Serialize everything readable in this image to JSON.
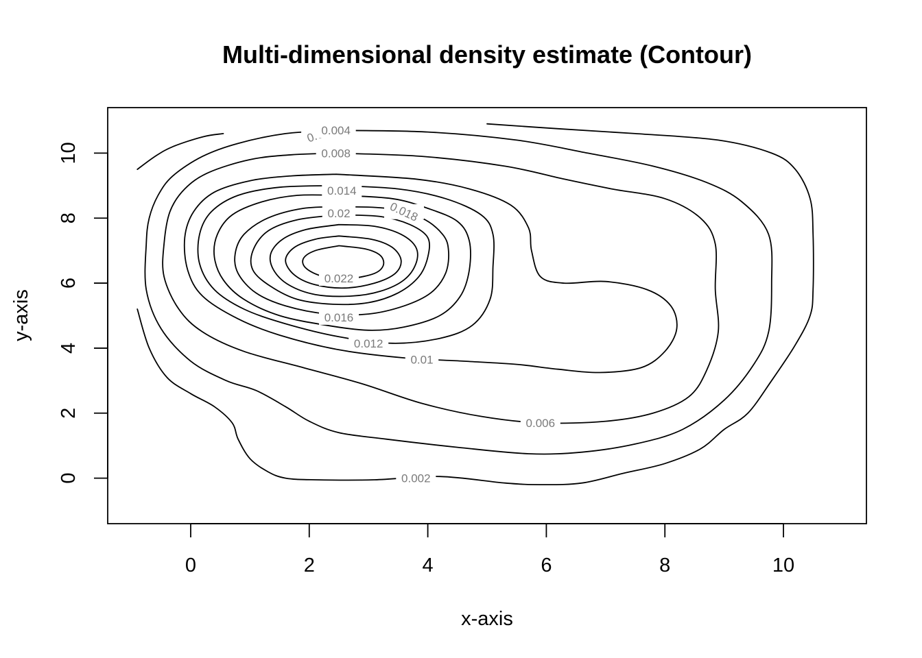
{
  "chart_data": {
    "type": "contour",
    "title": "Multi-dimensional density estimate (Contour)",
    "xlabel": "x-axis",
    "ylabel": "y-axis",
    "xlim": [
      -1.4,
      11.4
    ],
    "ylim": [
      -1.4,
      11.4
    ],
    "x_ticks": [
      0,
      2,
      4,
      6,
      8,
      10
    ],
    "y_ticks": [
      0,
      2,
      4,
      6,
      8,
      10
    ],
    "grid": false,
    "levels": [
      {
        "level": 0.002,
        "label": "0.002",
        "labels_at": [
          [
            2.2,
            10.6
          ],
          [
            3.8,
            0.0
          ]
        ],
        "segments": [
          [
            [
              -0.9,
              9.5
            ],
            [
              -0.6,
              9.9
            ],
            [
              -0.3,
              10.2
            ],
            [
              0.2,
              10.5
            ],
            [
              0.55,
              10.6
            ]
          ],
          [
            [
              5.0,
              10.9
            ],
            [
              6.2,
              10.75
            ],
            [
              7.5,
              10.6
            ],
            [
              8.9,
              10.4
            ],
            [
              9.8,
              10.0
            ],
            [
              10.2,
              9.5
            ],
            [
              10.45,
              8.6
            ],
            [
              10.5,
              7.5
            ],
            [
              10.5,
              5.8
            ],
            [
              10.45,
              5.0
            ],
            [
              10.2,
              4.1
            ],
            [
              9.8,
              3.0
            ],
            [
              9.4,
              2.0
            ],
            [
              9.0,
              1.5
            ],
            [
              8.6,
              0.9
            ],
            [
              8.0,
              0.45
            ],
            [
              7.3,
              0.15
            ],
            [
              6.6,
              -0.15
            ],
            [
              5.9,
              -0.2
            ],
            [
              5.3,
              -0.15
            ],
            [
              4.2,
              0.05
            ],
            [
              3.1,
              -0.05
            ],
            [
              2.1,
              -0.05
            ],
            [
              1.6,
              0.0
            ],
            [
              1.3,
              0.2
            ],
            [
              1.0,
              0.6
            ],
            [
              0.8,
              1.2
            ],
            [
              0.7,
              1.7
            ],
            [
              0.4,
              2.2
            ],
            [
              0.0,
              2.6
            ],
            [
              -0.4,
              3.1
            ],
            [
              -0.7,
              4.0
            ],
            [
              -0.9,
              5.2
            ]
          ]
        ]
      },
      {
        "level": 0.004,
        "label": "0.004",
        "labels_at": [
          [
            2.45,
            10.7
          ]
        ],
        "segments": [
          [
            [
              2.45,
              10.7
            ],
            [
              4.0,
              10.65
            ],
            [
              5.5,
              10.4
            ],
            [
              6.7,
              10.0
            ],
            [
              7.8,
              9.6
            ],
            [
              8.7,
              9.1
            ],
            [
              9.3,
              8.5
            ],
            [
              9.75,
              7.5
            ],
            [
              9.8,
              6.0
            ],
            [
              9.75,
              4.5
            ],
            [
              9.5,
              3.5
            ],
            [
              9.0,
              2.4
            ],
            [
              8.3,
              1.5
            ],
            [
              7.5,
              1.05
            ],
            [
              6.6,
              0.8
            ],
            [
              5.7,
              0.75
            ],
            [
              4.5,
              0.95
            ],
            [
              3.3,
              1.2
            ],
            [
              2.5,
              1.4
            ],
            [
              2.0,
              1.75
            ],
            [
              1.6,
              2.2
            ],
            [
              1.1,
              2.7
            ],
            [
              0.6,
              3.0
            ],
            [
              0.0,
              3.6
            ],
            [
              -0.5,
              4.6
            ],
            [
              -0.75,
              5.8
            ],
            [
              -0.75,
              7.2
            ],
            [
              -0.7,
              8.0
            ],
            [
              -0.55,
              8.7
            ],
            [
              -0.3,
              9.3
            ],
            [
              0.2,
              9.9
            ],
            [
              0.8,
              10.3
            ],
            [
              1.6,
              10.6
            ],
            [
              2.45,
              10.7
            ]
          ]
        ]
      },
      {
        "level": 0.006,
        "label": "0.006",
        "labels_at": [
          [
            5.9,
            1.7
          ]
        ],
        "segments": [
          [
            [
              2.45,
              10.0
            ],
            [
              3.9,
              9.9
            ],
            [
              5.3,
              9.6
            ],
            [
              6.3,
              9.2
            ],
            [
              7.1,
              8.9
            ],
            [
              8.0,
              8.6
            ],
            [
              8.6,
              8.0
            ],
            [
              8.85,
              7.2
            ],
            [
              8.85,
              5.8
            ],
            [
              8.9,
              4.5
            ],
            [
              8.7,
              3.3
            ],
            [
              8.4,
              2.5
            ],
            [
              7.8,
              2.0
            ],
            [
              7.0,
              1.75
            ],
            [
              5.9,
              1.7
            ],
            [
              4.9,
              1.9
            ],
            [
              3.9,
              2.3
            ],
            [
              2.9,
              2.9
            ],
            [
              1.9,
              3.4
            ],
            [
              0.9,
              3.9
            ],
            [
              0.2,
              4.5
            ],
            [
              -0.2,
              5.2
            ],
            [
              -0.45,
              6.2
            ],
            [
              -0.45,
              7.2
            ],
            [
              -0.35,
              8.2
            ],
            [
              -0.1,
              8.9
            ],
            [
              0.3,
              9.4
            ],
            [
              1.0,
              9.8
            ],
            [
              1.7,
              9.95
            ],
            [
              2.45,
              10.0
            ]
          ]
        ]
      },
      {
        "level": 0.008,
        "label": "0.008",
        "labels_at": [
          [
            2.45,
            10.0
          ]
        ],
        "segments": [
          [
            [
              2.45,
              9.35
            ],
            [
              3.8,
              9.2
            ],
            [
              4.7,
              8.9
            ],
            [
              5.4,
              8.4
            ],
            [
              5.7,
              7.7
            ],
            [
              5.75,
              7.0
            ],
            [
              5.9,
              6.2
            ],
            [
              6.3,
              6.0
            ],
            [
              7.0,
              6.05
            ],
            [
              7.7,
              5.8
            ],
            [
              8.1,
              5.3
            ],
            [
              8.2,
              4.6
            ],
            [
              8.0,
              3.9
            ],
            [
              7.6,
              3.4
            ],
            [
              6.9,
              3.25
            ],
            [
              6.2,
              3.35
            ],
            [
              5.5,
              3.5
            ],
            [
              4.6,
              3.6
            ],
            [
              3.6,
              3.7
            ],
            [
              2.5,
              3.95
            ],
            [
              1.5,
              4.4
            ],
            [
              0.8,
              4.9
            ],
            [
              0.2,
              5.6
            ],
            [
              -0.05,
              6.4
            ],
            [
              -0.1,
              7.4
            ],
            [
              0.05,
              8.2
            ],
            [
              0.4,
              8.8
            ],
            [
              1.0,
              9.15
            ],
            [
              1.7,
              9.3
            ],
            [
              2.45,
              9.35
            ]
          ]
        ]
      },
      {
        "level": 0.01,
        "label": "0.01",
        "labels_at": [
          [
            3.9,
            3.65
          ]
        ],
        "segments": [
          [
            [
              2.45,
              9.0
            ],
            [
              3.5,
              8.9
            ],
            [
              4.3,
              8.6
            ],
            [
              4.9,
              8.1
            ],
            [
              5.1,
              7.5
            ],
            [
              5.1,
              6.5
            ],
            [
              5.05,
              5.5
            ],
            [
              4.75,
              4.7
            ],
            [
              4.2,
              4.3
            ],
            [
              3.4,
              4.15
            ],
            [
              2.5,
              4.35
            ],
            [
              1.6,
              4.75
            ],
            [
              0.9,
              5.2
            ],
            [
              0.4,
              5.8
            ],
            [
              0.15,
              6.6
            ],
            [
              0.15,
              7.5
            ],
            [
              0.35,
              8.2
            ],
            [
              0.8,
              8.7
            ],
            [
              1.5,
              8.95
            ],
            [
              2.45,
              9.0
            ]
          ]
        ]
      },
      {
        "level": 0.012,
        "label": "0.012",
        "labels_at": [
          [
            3.0,
            4.15
          ]
        ],
        "segments": [
          [
            [
              2.5,
              8.7
            ],
            [
              3.4,
              8.6
            ],
            [
              4.0,
              8.3
            ],
            [
              4.5,
              7.9
            ],
            [
              4.7,
              7.3
            ],
            [
              4.7,
              6.4
            ],
            [
              4.55,
              5.6
            ],
            [
              4.2,
              5.0
            ],
            [
              3.6,
              4.65
            ],
            [
              3.0,
              4.55
            ],
            [
              2.3,
              4.7
            ],
            [
              1.5,
              5.0
            ],
            [
              0.9,
              5.5
            ],
            [
              0.55,
              6.1
            ],
            [
              0.4,
              6.8
            ],
            [
              0.45,
              7.5
            ],
            [
              0.7,
              8.1
            ],
            [
              1.2,
              8.5
            ],
            [
              1.8,
              8.7
            ],
            [
              2.5,
              8.7
            ]
          ]
        ]
      },
      {
        "level": 0.014,
        "label": "0.014",
        "labels_at": [
          [
            2.55,
            8.85
          ]
        ],
        "segments": [
          [
            [
              2.55,
              8.35
            ],
            [
              3.3,
              8.3
            ],
            [
              3.9,
              8.0
            ],
            [
              4.25,
              7.5
            ],
            [
              4.35,
              7.0
            ],
            [
              4.3,
              6.3
            ],
            [
              4.05,
              5.7
            ],
            [
              3.6,
              5.3
            ],
            [
              3.0,
              5.05
            ],
            [
              2.3,
              5.05
            ],
            [
              1.6,
              5.3
            ],
            [
              1.1,
              5.7
            ],
            [
              0.8,
              6.3
            ],
            [
              0.75,
              6.9
            ],
            [
              0.9,
              7.5
            ],
            [
              1.3,
              8.0
            ],
            [
              1.9,
              8.3
            ],
            [
              2.55,
              8.35
            ]
          ]
        ]
      },
      {
        "level": 0.016,
        "label": "0.016",
        "labels_at": [
          [
            2.5,
            4.95
          ]
        ],
        "segments": [
          [
            [
              2.5,
              8.1
            ],
            [
              3.2,
              8.05
            ],
            [
              3.7,
              7.8
            ],
            [
              4.0,
              7.4
            ],
            [
              4.0,
              6.8
            ],
            [
              3.85,
              6.2
            ],
            [
              3.5,
              5.7
            ],
            [
              3.0,
              5.4
            ],
            [
              2.4,
              5.35
            ],
            [
              1.8,
              5.5
            ],
            [
              1.35,
              5.9
            ],
            [
              1.05,
              6.4
            ],
            [
              1.05,
              7.0
            ],
            [
              1.3,
              7.6
            ],
            [
              1.8,
              7.95
            ],
            [
              2.5,
              8.1
            ]
          ]
        ]
      },
      {
        "level": 0.018,
        "label": "0.018",
        "labels_at": [
          [
            3.6,
            8.2
          ]
        ],
        "segments": [
          [
            [
              2.5,
              7.8
            ],
            [
              3.1,
              7.75
            ],
            [
              3.55,
              7.5
            ],
            [
              3.8,
              7.1
            ],
            [
              3.8,
              6.6
            ],
            [
              3.6,
              6.1
            ],
            [
              3.2,
              5.75
            ],
            [
              2.7,
              5.6
            ],
            [
              2.1,
              5.65
            ],
            [
              1.65,
              5.95
            ],
            [
              1.4,
              6.4
            ],
            [
              1.35,
              6.9
            ],
            [
              1.55,
              7.35
            ],
            [
              1.95,
              7.65
            ],
            [
              2.5,
              7.8
            ]
          ]
        ]
      },
      {
        "level": 0.02,
        "label": "0.02",
        "labels_at": [
          [
            2.5,
            8.15
          ]
        ],
        "segments": [
          [
            [
              2.5,
              7.45
            ],
            [
              3.05,
              7.35
            ],
            [
              3.4,
              7.1
            ],
            [
              3.55,
              6.7
            ],
            [
              3.45,
              6.3
            ],
            [
              3.1,
              6.0
            ],
            [
              2.6,
              5.85
            ],
            [
              2.1,
              5.95
            ],
            [
              1.75,
              6.25
            ],
            [
              1.6,
              6.7
            ],
            [
              1.75,
              7.1
            ],
            [
              2.1,
              7.35
            ],
            [
              2.5,
              7.45
            ]
          ]
        ]
      },
      {
        "level": 0.022,
        "label": "0.022",
        "labels_at": [
          [
            2.5,
            6.15
          ]
        ],
        "segments": [
          [
            [
              2.5,
              7.15
            ],
            [
              2.95,
              7.05
            ],
            [
              3.2,
              6.85
            ],
            [
              3.25,
              6.55
            ],
            [
              3.1,
              6.3
            ],
            [
              2.7,
              6.15
            ],
            [
              2.25,
              6.2
            ],
            [
              1.95,
              6.45
            ],
            [
              1.9,
              6.75
            ],
            [
              2.1,
              7.0
            ],
            [
              2.5,
              7.15
            ]
          ]
        ]
      }
    ]
  }
}
